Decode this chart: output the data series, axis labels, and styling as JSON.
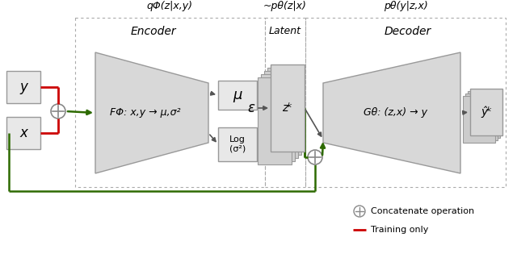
{
  "bg_color": "#ffffff",
  "box_fill": "#e8e8e8",
  "box_edge": "#999999",
  "trap_fill": "#d8d8d8",
  "trap_edge": "#999999",
  "arrow_color": "#555555",
  "green_color": "#2d6a00",
  "red_color": "#cc0000",
  "label_q": "qΦ(z|x,y)",
  "label_p_approx": "~pθ(z|x)",
  "label_p": "pθ(y|z,x)",
  "label_encoder": "Encoder",
  "label_decoder": "Decoder",
  "label_latent": "Latent",
  "label_F": "FΦ: x,y → μ,σ²",
  "label_G": "Gθ: (z,x) → y",
  "label_mu": "μ",
  "label_log": "Log\n(σ²)",
  "label_eps": "ε",
  "label_zk": "zᵏ",
  "label_yk": "ŷᵏ",
  "label_y": "y",
  "label_x": "x",
  "legend_concat": "Concatenate operation",
  "legend_train": "Training only"
}
